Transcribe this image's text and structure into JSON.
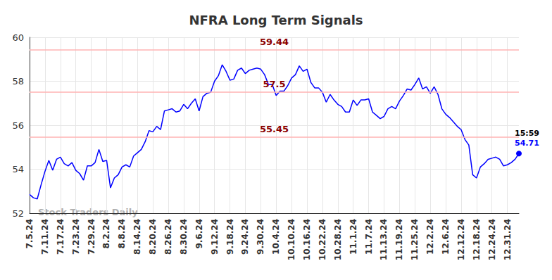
{
  "chart_data": {
    "type": "line",
    "title": "NFRA Long Term Signals",
    "watermark": "Stock Traders Daily",
    "color": "#0000ff",
    "grid": true,
    "ylim": [
      52,
      60
    ],
    "yticks": [
      52,
      54,
      56,
      58,
      60
    ],
    "reference_lines": [
      59.44,
      57.5,
      55.45
    ],
    "reference_color": "#ffb3b3",
    "reference_label_color": "#8b0000",
    "last_point": {
      "time": "15:59",
      "value": 54.71
    },
    "categories": [
      "7.5.24",
      null,
      null,
      null,
      "7.11.24",
      null,
      null,
      null,
      "7.17.24",
      null,
      null,
      null,
      "7.23.24",
      null,
      null,
      null,
      "7.29.24",
      null,
      null,
      null,
      "8.2.24",
      null,
      null,
      null,
      "8.8.24",
      null,
      null,
      null,
      "8.14.24",
      null,
      null,
      null,
      "8.20.24",
      null,
      null,
      null,
      "8.26.24",
      null,
      null,
      null,
      "8.30.24",
      null,
      null,
      null,
      "9.6.24",
      null,
      null,
      null,
      "9.12.24",
      null,
      null,
      null,
      "9.18.24",
      null,
      null,
      null,
      "9.24.24",
      null,
      null,
      null,
      "9.30.24",
      null,
      null,
      null,
      "10.4.24",
      null,
      null,
      null,
      "10.10.24",
      null,
      null,
      null,
      "10.16.24",
      null,
      null,
      null,
      "10.22.24",
      null,
      null,
      null,
      "10.28.24",
      null,
      null,
      null,
      "11.1.24",
      null,
      null,
      null,
      "11.7.24",
      null,
      null,
      null,
      "11.13.24",
      null,
      null,
      null,
      "11.19.24",
      null,
      null,
      null,
      "11.25.24",
      null,
      null,
      null,
      "12.2.24",
      null,
      null,
      null,
      "12.6.24",
      null,
      null,
      null,
      "12.12.24",
      null,
      null,
      null,
      "12.18.24",
      null,
      null,
      null,
      "12.24.24",
      null,
      null,
      null,
      "12.31.24",
      null,
      null,
      null
    ],
    "values": [
      52.85,
      52.7,
      52.65,
      53.3,
      53.9,
      54.4,
      53.95,
      54.45,
      54.55,
      54.25,
      54.15,
      54.3,
      53.95,
      53.8,
      53.5,
      54.15,
      54.15,
      54.3,
      54.9,
      54.35,
      54.4,
      53.15,
      53.6,
      53.75,
      54.1,
      54.2,
      54.1,
      54.6,
      54.75,
      54.9,
      55.25,
      55.75,
      55.7,
      55.95,
      55.8,
      56.65,
      56.7,
      56.75,
      56.6,
      56.65,
      56.95,
      56.75,
      57.0,
      57.2,
      56.65,
      57.3,
      57.45,
      57.5,
      58.0,
      58.25,
      58.75,
      58.45,
      58.05,
      58.1,
      58.5,
      58.6,
      58.35,
      58.5,
      58.55,
      58.6,
      58.55,
      58.3,
      57.85,
      57.85,
      57.35,
      57.55,
      57.55,
      57.8,
      58.15,
      58.3,
      58.7,
      58.45,
      58.55,
      57.95,
      57.7,
      57.7,
      57.5,
      57.05,
      57.4,
      57.15,
      56.95,
      56.85,
      56.6,
      56.6,
      57.15,
      56.9,
      57.15,
      57.15,
      57.2,
      56.6,
      56.45,
      56.3,
      56.4,
      56.75,
      56.85,
      56.75,
      57.1,
      57.35,
      57.65,
      57.6,
      57.85,
      58.15,
      57.65,
      57.75,
      57.45,
      57.75,
      57.4,
      56.75,
      56.5,
      56.35,
      56.15,
      55.95,
      55.8,
      55.35,
      55.1,
      53.75,
      53.6,
      54.1,
      54.25,
      54.45,
      54.5,
      54.55,
      54.45,
      54.15,
      54.2,
      54.3,
      54.45,
      54.71
    ]
  }
}
